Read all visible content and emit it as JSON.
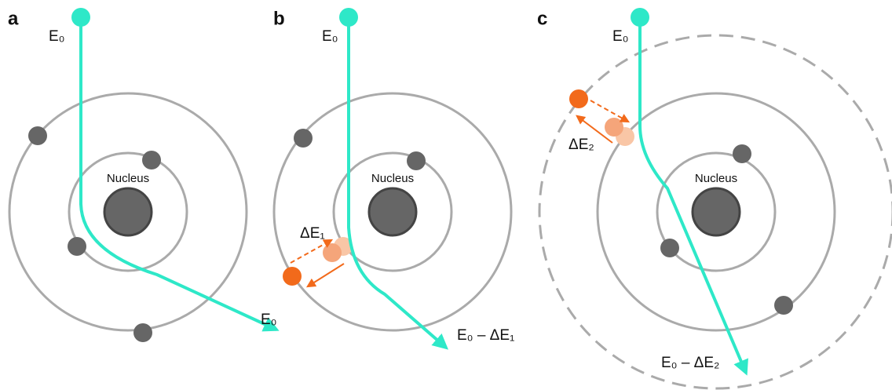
{
  "panels": [
    {
      "label": "a",
      "nucleus": "Nucleus",
      "incident": "E₀",
      "outgoing": "E₀"
    },
    {
      "label": "b",
      "nucleus": "Nucleus",
      "incident": "E₀",
      "outgoing": "E₀ – ΔE₁",
      "transition": "ΔE₁"
    },
    {
      "label": "c",
      "nucleus": "Nucleus",
      "incident": "E₀",
      "outgoing": "E₀ – ΔE₂",
      "transition": "ΔE₂"
    }
  ]
}
